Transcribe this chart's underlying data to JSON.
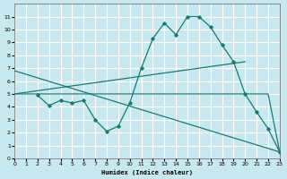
{
  "xlabel": "Humidex (Indice chaleur)",
  "bg_color": "#c8e8f0",
  "grid_color": "#ffffff",
  "line_color": "#1a7a6e",
  "xlim": [
    0,
    23
  ],
  "ylim": [
    0,
    12
  ],
  "xticks": [
    0,
    1,
    2,
    3,
    4,
    5,
    6,
    7,
    8,
    9,
    10,
    11,
    12,
    13,
    14,
    15,
    16,
    17,
    18,
    19,
    20,
    21,
    22,
    23
  ],
  "yticks": [
    0,
    1,
    2,
    3,
    4,
    5,
    6,
    7,
    8,
    9,
    10,
    11
  ],
  "curves": [
    {
      "x": [
        2,
        3,
        4,
        5,
        6,
        7,
        8,
        9,
        10,
        11,
        12,
        13,
        14,
        15,
        16,
        17,
        18,
        19,
        20,
        21,
        22,
        23
      ],
      "y": [
        4.9,
        4.1,
        4.5,
        4.3,
        4.5,
        3.0,
        2.1,
        2.5,
        4.3,
        7.0,
        9.3,
        10.5,
        9.6,
        11.0,
        11.0,
        10.2,
        8.8,
        7.5,
        5.0,
        3.6,
        2.3,
        0.5
      ],
      "marker": true
    },
    {
      "x": [
        0,
        23
      ],
      "y": [
        6.8,
        0.5
      ],
      "marker": false
    },
    {
      "x": [
        0,
        20
      ],
      "y": [
        5.0,
        7.5
      ],
      "marker": false
    },
    {
      "x": [
        0,
        20,
        21,
        22,
        23
      ],
      "y": [
        5.0,
        5.0,
        5.0,
        5.0,
        0.5
      ],
      "marker": false
    }
  ]
}
